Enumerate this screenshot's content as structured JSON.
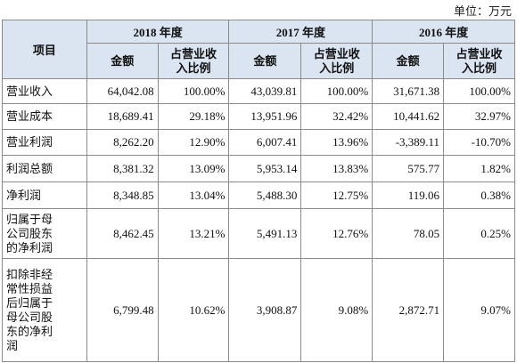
{
  "unit": "单位：万元",
  "table": {
    "item_header": "项目",
    "years": [
      "2018 年度",
      "2017 年度",
      "2016 年度"
    ],
    "subheaders": [
      "金额",
      "占营业收入比例",
      "金额",
      "占营业收入比例",
      "金额",
      "占营业收入比例"
    ],
    "rows": [
      [
        "营业收入",
        "64,042.08",
        "100.00%",
        "43,039.81",
        "100.00%",
        "31,671.38",
        "100.00%"
      ],
      [
        "营业成本",
        "18,689.41",
        "29.18%",
        "13,951.96",
        "32.42%",
        "10,441.62",
        "32.97%"
      ],
      [
        "营业利润",
        "8,262.20",
        "12.90%",
        "6,007.41",
        "13.96%",
        "-3,389.11",
        "-10.70%"
      ],
      [
        "利润总额",
        "8,381.32",
        "13.09%",
        "5,953.14",
        "13.83%",
        "575.77",
        "1.82%"
      ],
      [
        "净利润",
        "8,348.85",
        "13.04%",
        "5,488.30",
        "12.75%",
        "119.06",
        "0.38%"
      ],
      [
        "归属于母公司股东的净利润",
        "8,462.45",
        "13.21%",
        "5,491.13",
        "12.76%",
        "78.05",
        "0.25%"
      ],
      [
        "扣除非经常性损益后归属于母公司股东的净利润",
        "6,799.48",
        "10.62%",
        "3,908.87",
        "9.08%",
        "2,872.71",
        "9.07%"
      ]
    ]
  }
}
